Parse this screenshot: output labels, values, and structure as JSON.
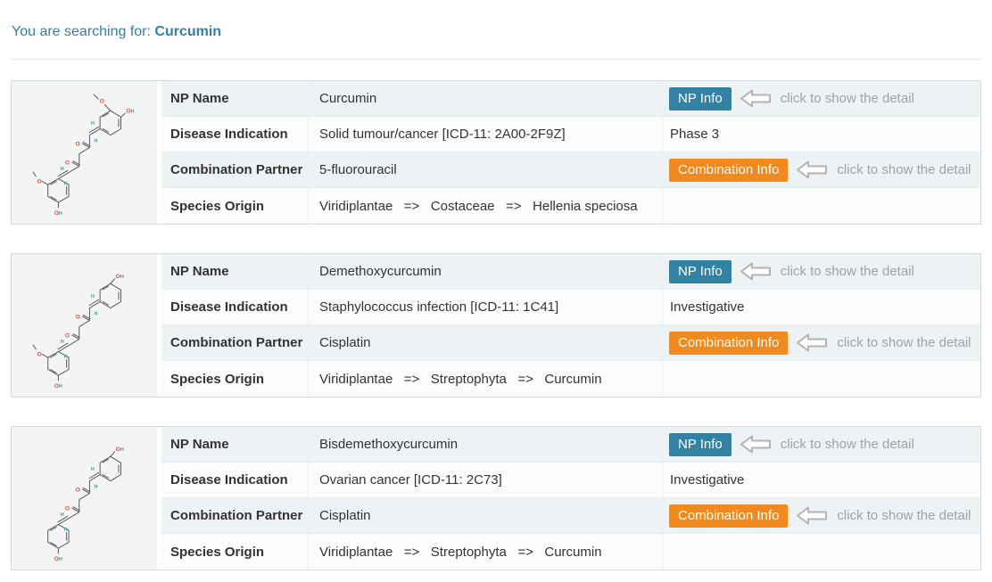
{
  "page": {
    "search_prefix": "You are searching for:",
    "search_query": "Curcumin"
  },
  "table_labels": {
    "np_name": "NP Name",
    "disease_indication": "Disease Indication",
    "combination_partner": "Combination Partner",
    "species_origin": "Species Origin"
  },
  "actions": {
    "np_info": "NP Info",
    "combination_info": "Combination Info",
    "hint": "click to show the detail"
  },
  "colors": {
    "np_info_button": "#3282a3",
    "combination_info_button": "#f18a1e",
    "search_text_blue": "#337fa8",
    "hint_gray": "#a2a2a2",
    "row_stripe": "#edf3f4",
    "atom_oxygen_red": "#ee4b45",
    "atom_hydrogen_teal": "#4f918f"
  },
  "results": [
    {
      "np_name": "Curcumin",
      "disease_indication": "Solid tumour/cancer [ICD-11: 2A00-2F9Z]",
      "clinical_status": "Phase 3",
      "combination_partner": "5-fluorouracil",
      "species_origin": "Viridiplantae   =>   Costaceae   =>   Hellenia speciosa",
      "structure": {
        "name": "curcumin-2d-structure",
        "top_methoxy": true,
        "bottom_methoxy": true
      }
    },
    {
      "np_name": "Demethoxycurcumin",
      "disease_indication": "Staphylococcus infection [ICD-11: 1C41]",
      "clinical_status": "Investigative",
      "combination_partner": "Cisplatin",
      "species_origin": "Viridiplantae   =>   Streptophyta   =>   Curcumin",
      "structure": {
        "name": "demethoxycurcumin-2d-structure",
        "top_methoxy": false,
        "bottom_methoxy": true
      }
    },
    {
      "np_name": "Bisdemethoxycurcumin",
      "disease_indication": "Ovarian cancer [ICD-11: 2C73]",
      "clinical_status": "Investigative",
      "combination_partner": "Cisplatin",
      "species_origin": "Viridiplantae   =>   Streptophyta   =>   Curcumin",
      "structure": {
        "name": "bisdemethoxycurcumin-2d-structure",
        "top_methoxy": false,
        "bottom_methoxy": false
      }
    }
  ]
}
